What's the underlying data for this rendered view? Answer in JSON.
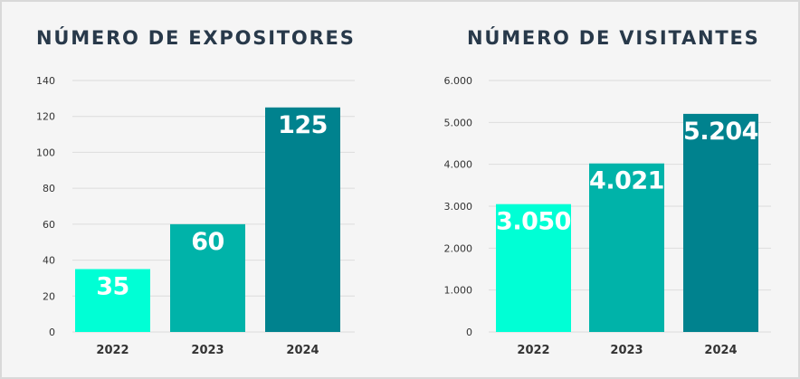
{
  "chart_data": [
    {
      "type": "bar",
      "title": "NÚMERO DE EXPOSITORES",
      "categories": [
        "2022",
        "2023",
        "2024"
      ],
      "values": [
        35,
        60,
        125
      ],
      "value_labels": [
        "35",
        "60",
        "125"
      ],
      "ylim": [
        0,
        140
      ],
      "yticks": [
        0,
        20,
        40,
        60,
        80,
        100,
        120,
        140
      ],
      "ytick_labels": [
        "0",
        "20",
        "40",
        "60",
        "80",
        "100",
        "120",
        "140"
      ],
      "xlabel": "",
      "ylabel": "",
      "grid": true,
      "bar_colors": [
        "#00ffd5",
        "#00b3a9",
        "#00828e"
      ]
    },
    {
      "type": "bar",
      "title": "NÚMERO DE VISITANTES",
      "categories": [
        "2022",
        "2023",
        "2024"
      ],
      "values": [
        3050,
        4021,
        5204
      ],
      "value_labels": [
        "3.050",
        "4.021",
        "5.204"
      ],
      "ylim": [
        0,
        6000
      ],
      "yticks": [
        0,
        1000,
        2000,
        3000,
        4000,
        5000,
        6000
      ],
      "ytick_labels": [
        "0",
        "1.000",
        "2.000",
        "3.000",
        "4.000",
        "5.000",
        "6.000"
      ],
      "xlabel": "",
      "ylabel": "",
      "grid": true,
      "bar_colors": [
        "#00ffd5",
        "#00b3a9",
        "#00828e"
      ]
    }
  ]
}
